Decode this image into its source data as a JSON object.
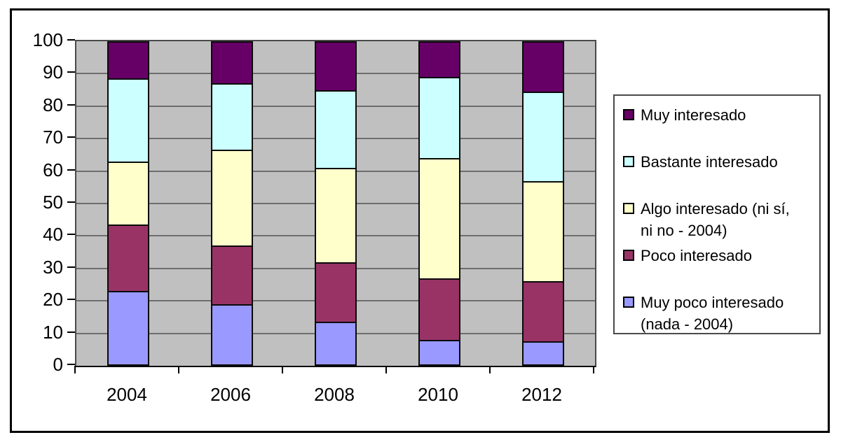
{
  "chart_data": {
    "type": "bar",
    "stacked": true,
    "orientation": "vertical",
    "categories": [
      "2004",
      "2006",
      "2008",
      "2010",
      "2012"
    ],
    "series": [
      {
        "name": "Muy poco interesado (nada - 2004)",
        "color": "#9999FF",
        "values": [
          23,
          19,
          13.5,
          8,
          7.5
        ]
      },
      {
        "name": "Poco interesado",
        "color": "#993366",
        "values": [
          20.5,
          18,
          18.5,
          19,
          18.5
        ]
      },
      {
        "name": "Algo interesado (ni sí, ni no - 2004)",
        "color": "#FFFFCC",
        "values": [
          19.5,
          29.5,
          29,
          37,
          31
        ]
      },
      {
        "name": "Bastante interesado",
        "color": "#CCFFFF",
        "values": [
          25.5,
          20.5,
          24,
          25,
          27.5
        ]
      },
      {
        "name": "Muy interesado",
        "color": "#660066",
        "values": [
          11.5,
          13,
          15,
          11,
          15.5
        ]
      }
    ],
    "title": "",
    "xlabel": "",
    "ylabel": "",
    "ylim": [
      0,
      100
    ],
    "ytick_step": 10,
    "yticklabels": [
      "0",
      "10",
      "20",
      "30",
      "40",
      "50",
      "60",
      "70",
      "80",
      "90",
      "100"
    ],
    "grid": true,
    "plot_background": "#C0C0C0",
    "gridline_color": "#6E6E6E",
    "legend_position": "right"
  },
  "legend": {
    "items": [
      {
        "color": "#660066",
        "lines": [
          "Muy interesado"
        ]
      },
      {
        "color": "#CCFFFF",
        "lines": [
          "Bastante interesado"
        ]
      },
      {
        "color": "#FFFFCC",
        "lines": [
          "Algo interesado (ni sí,",
          "ni no - 2004)"
        ]
      },
      {
        "color": "#993366",
        "lines": [
          "Poco interesado"
        ]
      },
      {
        "color": "#9999FF",
        "lines": [
          "Muy poco interesado",
          "(nada - 2004)"
        ]
      }
    ]
  }
}
